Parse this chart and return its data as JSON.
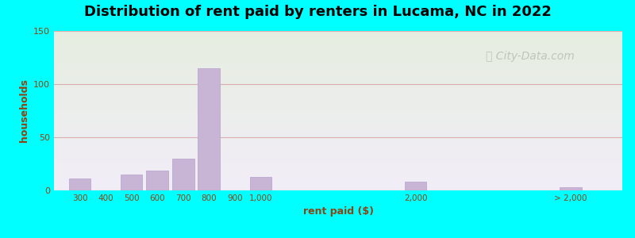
{
  "title": "Distribution of rent paid by renters in Lucama, NC in 2022",
  "xlabel": "rent paid ($)",
  "ylabel": "households",
  "bar_color": "#c8b4d4",
  "bar_edge_color": "#b8a0cc",
  "background_outer": "#00ffff",
  "background_top": "#e6ede0",
  "background_bottom": "#f2eef8",
  "yticks": [
    0,
    50,
    100,
    150
  ],
  "ylim": [
    0,
    150
  ],
  "tick_color": "#8B4513",
  "label_color": "#8B4513",
  "grid_color": "#d4a0a0",
  "watermark": "City-Data.com",
  "title_fontsize": 13,
  "label_fontsize": 9,
  "tick_fontsize": 7.5,
  "categories": [
    "300",
    "400",
    "500",
    "600",
    "700",
    "800",
    "900",
    "1,000",
    "2,000",
    "> 2,000"
  ],
  "positions": [
    1,
    2,
    3,
    4,
    5,
    6,
    7,
    8,
    14,
    20
  ],
  "values": [
    11,
    0,
    15,
    19,
    30,
    115,
    0,
    13,
    8,
    3
  ],
  "bar_width": 0.85
}
